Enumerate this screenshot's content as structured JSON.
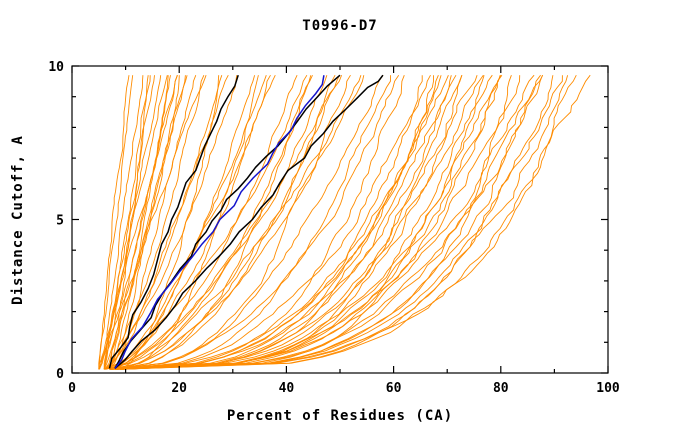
{
  "title": "T0996-D7",
  "axes": {
    "x_label": "Percent of Residues (CA)",
    "y_label": "Distance Cutoff, A",
    "x_tick_values": [
      0,
      20,
      40,
      60,
      80,
      100
    ],
    "x_tick_labels": [
      "0",
      "20",
      "40",
      "60",
      "80",
      "100"
    ],
    "x_minor_ticks": [
      10,
      30,
      50,
      70,
      90
    ],
    "y_tick_values": [
      0,
      5,
      10
    ],
    "y_tick_labels": [
      "0",
      "5",
      "10"
    ],
    "y_minor_ticks": [
      1,
      2,
      3,
      4,
      6,
      7,
      8,
      9
    ],
    "x_range": [
      0,
      100
    ],
    "y_range": [
      0,
      10
    ]
  },
  "colors": {
    "orange": "#FF8C00",
    "black": "#000000",
    "blue": "#1515CC",
    "frame": "#000000",
    "background": "#FFFFFF"
  },
  "chart_data": {
    "type": "line",
    "title": "T0996-D7",
    "xlabel": "Percent of Residues (CA)",
    "ylabel": "Distance Cutoff, A",
    "xlim": [
      0,
      100
    ],
    "ylim": [
      0,
      10
    ],
    "grid": false,
    "legend": false,
    "description": "CASP-style accuracy plot: percent of CA residues (x) within a distance cutoff in Angstroms (y) for ~100 predicted models (orange), three reference/highlighted models (black) and one highlighted model (blue). Curves estimated from pixels.",
    "series": [
      {
        "name": "highlight-black-1",
        "color": "black",
        "points": [
          [
            7,
            0.15
          ],
          [
            9,
            0.8
          ],
          [
            11,
            1.5
          ],
          [
            13,
            2.3
          ],
          [
            15,
            3.2
          ],
          [
            17,
            4.2
          ],
          [
            19,
            5.0
          ],
          [
            21,
            5.8
          ],
          [
            23,
            6.6
          ],
          [
            25,
            7.4
          ],
          [
            27,
            8.2
          ],
          [
            29,
            9.0
          ],
          [
            31,
            9.7
          ]
        ]
      },
      {
        "name": "highlight-black-2",
        "color": "black",
        "points": [
          [
            8,
            0.15
          ],
          [
            10,
            0.7
          ],
          [
            13,
            1.4
          ],
          [
            16,
            2.2
          ],
          [
            19,
            3.0
          ],
          [
            22,
            3.8
          ],
          [
            25,
            4.6
          ],
          [
            28,
            5.3
          ],
          [
            31,
            6.0
          ],
          [
            34,
            6.7
          ],
          [
            38,
            7.4
          ],
          [
            42,
            8.2
          ],
          [
            46,
            9.0
          ],
          [
            50,
            9.7
          ]
        ]
      },
      {
        "name": "highlight-black-3",
        "color": "black",
        "points": [
          [
            8,
            0.15
          ],
          [
            11,
            0.7
          ],
          [
            15,
            1.4
          ],
          [
            19,
            2.2
          ],
          [
            23,
            3.0
          ],
          [
            27,
            3.8
          ],
          [
            31,
            4.6
          ],
          [
            35,
            5.4
          ],
          [
            39,
            6.2
          ],
          [
            43,
            7.0
          ],
          [
            47,
            7.8
          ],
          [
            51,
            8.6
          ],
          [
            55,
            9.3
          ],
          [
            58,
            9.7
          ]
        ]
      },
      {
        "name": "highlight-blue",
        "color": "blue",
        "points": [
          [
            8,
            0.15
          ],
          [
            10,
            0.7
          ],
          [
            13,
            1.5
          ],
          [
            16,
            2.4
          ],
          [
            20,
            3.3
          ],
          [
            24,
            4.2
          ],
          [
            28,
            5.0
          ],
          [
            32,
            5.9
          ],
          [
            36,
            6.8
          ],
          [
            39,
            7.5
          ],
          [
            42,
            8.3
          ],
          [
            45,
            9.1
          ],
          [
            47,
            9.7
          ]
        ]
      }
    ],
    "orange_models": {
      "note": "Each orange curve parameterized as [x_at_y0, x_at_ytop, shape_exponent]; x(t)=x0+(x1-x0)*t^p with y rising 0.12 to 9.7. Values estimated from the plot.",
      "y_start": 0.12,
      "y_end": 9.7,
      "params": [
        [
          5,
          11,
          1.0
        ],
        [
          5,
          12,
          0.9
        ],
        [
          6,
          13,
          1.1
        ],
        [
          6,
          14,
          0.95
        ],
        [
          5,
          15,
          0.85
        ],
        [
          7,
          15,
          1.0
        ],
        [
          6,
          16,
          0.9
        ],
        [
          5,
          17,
          1.05
        ],
        [
          7,
          18,
          0.8
        ],
        [
          6,
          19,
          0.95
        ],
        [
          5,
          20,
          0.9
        ],
        [
          7,
          21,
          1.0
        ],
        [
          6,
          22,
          0.85
        ],
        [
          8,
          23,
          0.9
        ],
        [
          5,
          24,
          1.0
        ],
        [
          6,
          25,
          0.8
        ],
        [
          7,
          20,
          0.7
        ],
        [
          6,
          18,
          0.75
        ],
        [
          6,
          27,
          0.75
        ],
        [
          7,
          29,
          0.8
        ],
        [
          6,
          31,
          0.7
        ],
        [
          8,
          33,
          0.65
        ],
        [
          7,
          35,
          0.7
        ],
        [
          6,
          37,
          0.6
        ],
        [
          8,
          39,
          0.75
        ],
        [
          7,
          41,
          0.6
        ],
        [
          6,
          43,
          0.65
        ],
        [
          8,
          45,
          0.55
        ],
        [
          7,
          47,
          0.6
        ],
        [
          6,
          49,
          0.65
        ],
        [
          8,
          51,
          0.5
        ],
        [
          7,
          53,
          0.55
        ],
        [
          6,
          55,
          0.6
        ],
        [
          9,
          36,
          0.5
        ],
        [
          8,
          44,
          0.45
        ],
        [
          7,
          50,
          0.5
        ],
        [
          9,
          28,
          0.6
        ],
        [
          8,
          52,
          0.42
        ],
        [
          7,
          57,
          0.4
        ],
        [
          8,
          59,
          0.38
        ],
        [
          7,
          61,
          0.42
        ],
        [
          9,
          63,
          0.35
        ],
        [
          8,
          65,
          0.4
        ],
        [
          7,
          66,
          0.32
        ],
        [
          9,
          68,
          0.36
        ],
        [
          8,
          69,
          0.3
        ],
        [
          7,
          70,
          0.38
        ],
        [
          9,
          71,
          0.33
        ],
        [
          8,
          72,
          0.3
        ],
        [
          7,
          73,
          0.35
        ],
        [
          9,
          74,
          0.28
        ],
        [
          8,
          75,
          0.32
        ],
        [
          7,
          76,
          0.3
        ],
        [
          9,
          77,
          0.34
        ],
        [
          8,
          78,
          0.28
        ],
        [
          7,
          79,
          0.3
        ],
        [
          9,
          80,
          0.26
        ],
        [
          8,
          81,
          0.3
        ],
        [
          7,
          82,
          0.28
        ],
        [
          9,
          83,
          0.32
        ],
        [
          8,
          84,
          0.26
        ],
        [
          7,
          85,
          0.3
        ],
        [
          9,
          86,
          0.25
        ],
        [
          8,
          87,
          0.28
        ],
        [
          7,
          88,
          0.26
        ],
        [
          9,
          89,
          0.3
        ],
        [
          8,
          90,
          0.24
        ],
        [
          7,
          92,
          0.26
        ],
        [
          9,
          94,
          0.25
        ],
        [
          8,
          96,
          0.28
        ]
      ]
    }
  }
}
